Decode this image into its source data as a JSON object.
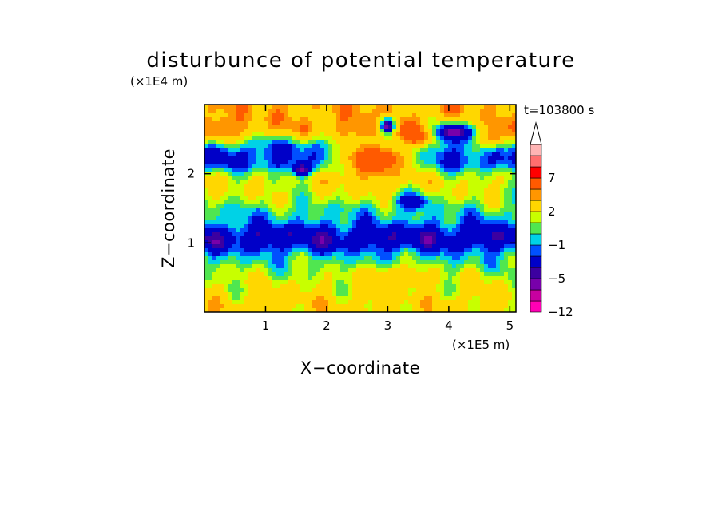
{
  "chart_data": {
    "type": "heatmap",
    "title": "disturbunce of potential temperature",
    "time_label": "t=103800 s",
    "xlabel": "X−coordinate",
    "ylabel": "Z−coordinate",
    "x_unit": "(×1E5 m)",
    "y_unit": "(×1E4 m)",
    "xlim": [
      0,
      5.1
    ],
    "ylim": [
      0,
      3.0
    ],
    "x_ticks": [
      1,
      2,
      3,
      4,
      5
    ],
    "x_tick_labels": [
      "1",
      "2",
      "3",
      "4",
      "5"
    ],
    "y_ticks": [
      1,
      2
    ],
    "y_tick_labels": [
      "1",
      "2"
    ],
    "colorbar": {
      "levels": [
        -12,
        -10,
        -8,
        -5,
        -4,
        -2,
        -1,
        0,
        1,
        2,
        4,
        5,
        7,
        9,
        11
      ],
      "tick_labels": [
        {
          "value": 7,
          "label": "7"
        },
        {
          "value": 2,
          "label": "2"
        },
        {
          "value": -1,
          "label": "−1"
        },
        {
          "value": -5,
          "label": "−5"
        },
        {
          "value": -12,
          "label": "−12"
        }
      ],
      "colors": [
        "#ff00b4",
        "#c800a0",
        "#7800aa",
        "#3c00a0",
        "#0000c8",
        "#0050ff",
        "#00d2e6",
        "#50e650",
        "#c8ff00",
        "#ffd700",
        "#ff9600",
        "#ff5a00",
        "#ff0000",
        "#ff6e6e",
        "#ffb4b4"
      ],
      "extend_top": true
    },
    "field_features": [
      {
        "kind": "layer",
        "z_center": 0.15,
        "z_width": 0.15,
        "value": 3
      },
      {
        "kind": "layer",
        "z_center": 0.45,
        "z_width": 0.25,
        "value": 2
      },
      {
        "kind": "layer",
        "z_center": 0.75,
        "z_width": 0.2,
        "value": 0
      },
      {
        "kind": "layer",
        "z_center": 1.05,
        "z_width": 0.2,
        "value": -4
      },
      {
        "kind": "layer",
        "z_center": 1.4,
        "z_width": 0.2,
        "value": -1
      },
      {
        "kind": "layer",
        "z_center": 1.7,
        "z_width": 0.3,
        "value": 2
      },
      {
        "kind": "layer",
        "z_center": 2.3,
        "z_width": 0.2,
        "value": -3
      },
      {
        "kind": "layer",
        "z_center": 2.75,
        "z_width": 0.3,
        "value": 4
      },
      {
        "kind": "blob",
        "x": 2.8,
        "z": 2.2,
        "rx": 0.7,
        "rz": 0.3,
        "value": 7
      },
      {
        "kind": "blob",
        "x": 3.5,
        "z": 2.55,
        "rx": 0.3,
        "rz": 0.15,
        "value": 7
      },
      {
        "kind": "blob",
        "x": 2.6,
        "z": 2.7,
        "rx": 0.3,
        "rz": 0.2,
        "value": 5
      },
      {
        "kind": "blob",
        "x": 0.3,
        "z": 2.65,
        "rx": 0.35,
        "rz": 0.2,
        "value": 5
      },
      {
        "kind": "blob",
        "x": 4.7,
        "z": 2.55,
        "rx": 0.3,
        "rz": 0.2,
        "value": 5
      },
      {
        "kind": "blob",
        "x": 4.1,
        "z": 2.6,
        "rx": 0.35,
        "rz": 0.15,
        "value": -6
      },
      {
        "kind": "blob",
        "x": 3.0,
        "z": 2.7,
        "rx": 0.12,
        "rz": 0.12,
        "value": -6
      },
      {
        "kind": "blob",
        "x": 1.6,
        "z": 2.05,
        "rx": 0.15,
        "rz": 0.1,
        "value": -6
      },
      {
        "kind": "blob",
        "x": 3.4,
        "z": 1.6,
        "rx": 0.25,
        "rz": 0.12,
        "value": -4
      },
      {
        "kind": "blob",
        "x": 3.1,
        "z": 0.5,
        "rx": 0.5,
        "rz": 0.15,
        "value": 4
      }
    ]
  }
}
